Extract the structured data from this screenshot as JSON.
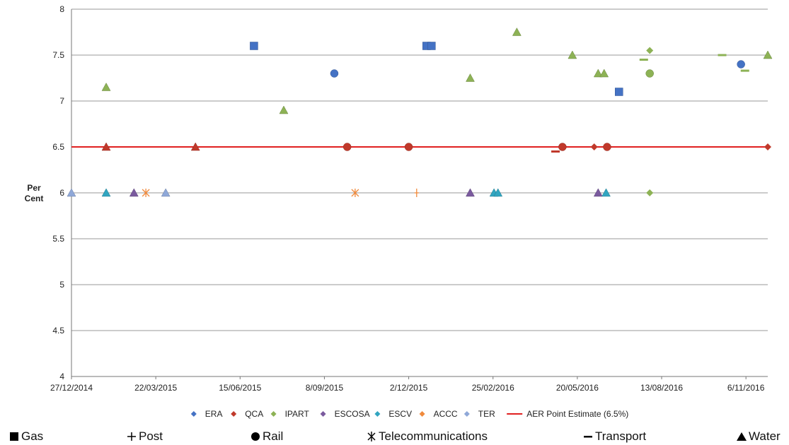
{
  "chart_data": {
    "type": "scatter",
    "ylabel": "Per\nCent",
    "ylim": [
      4,
      8
    ],
    "yticks": [
      "4",
      "4.5",
      "5",
      "5.5",
      "6",
      "6.5",
      "7",
      "7.5",
      "8"
    ],
    "xlim": [
      "2014-12-27",
      "2016-11-28"
    ],
    "xticks": [
      "27/12/2014",
      "22/03/2015",
      "15/06/2015",
      "8/09/2015",
      "2/12/2015",
      "25/02/2016",
      "20/05/2016",
      "13/08/2016",
      "6/11/2016"
    ],
    "grid": "horizontal",
    "legend_position": "bottom",
    "regulators": [
      {
        "name": "ERA",
        "color": "#4472C4"
      },
      {
        "name": "QCA",
        "color": "#C0392B"
      },
      {
        "name": "IPART",
        "color": "#8DB255"
      },
      {
        "name": "ESCOSA",
        "color": "#7A5A9E"
      },
      {
        "name": "ESCV",
        "color": "#31A5C0"
      },
      {
        "name": "ACCC",
        "color": "#F08A3C"
      },
      {
        "name": "TER",
        "color": "#8FA8D8"
      }
    ],
    "reference_line": {
      "name": "AER Point Estimate (6.5%)",
      "value": 6.5,
      "color": "#E02020"
    },
    "sectors": [
      "Gas",
      "Post",
      "Rail",
      "Telecommunications",
      "Transport",
      "Water"
    ],
    "points": [
      {
        "x": "2014-12-27",
        "y": 6.0,
        "regulator": "TER",
        "sector": "Water"
      },
      {
        "x": "2015-01-31",
        "y": 6.0,
        "regulator": "ESCV",
        "sector": "Water"
      },
      {
        "x": "2015-01-31",
        "y": 6.5,
        "regulator": "QCA",
        "sector": "Water"
      },
      {
        "x": "2015-01-31",
        "y": 7.15,
        "regulator": "IPART",
        "sector": "Water"
      },
      {
        "x": "2015-02-28",
        "y": 6.0,
        "regulator": "ESCOSA",
        "sector": "Water"
      },
      {
        "x": "2015-03-12",
        "y": 6.0,
        "regulator": "ACCC",
        "sector": "Telecommunications"
      },
      {
        "x": "2015-04-01",
        "y": 6.0,
        "regulator": "TER",
        "sector": "Water"
      },
      {
        "x": "2015-05-01",
        "y": 6.5,
        "regulator": "QCA",
        "sector": "Water"
      },
      {
        "x": "2015-06-29",
        "y": 7.6,
        "regulator": "ERA",
        "sector": "Gas"
      },
      {
        "x": "2015-07-29",
        "y": 6.9,
        "regulator": "IPART",
        "sector": "Water"
      },
      {
        "x": "2015-09-18",
        "y": 7.3,
        "regulator": "ERA",
        "sector": "Rail"
      },
      {
        "x": "2015-10-01",
        "y": 6.5,
        "regulator": "QCA",
        "sector": "Rail"
      },
      {
        "x": "2015-10-09",
        "y": 6.0,
        "regulator": "ACCC",
        "sector": "Telecommunications"
      },
      {
        "x": "2015-12-02",
        "y": 6.5,
        "regulator": "QCA",
        "sector": "Rail"
      },
      {
        "x": "2015-12-10",
        "y": 6.0,
        "regulator": "ACCC",
        "sector": "Post"
      },
      {
        "x": "2015-12-20",
        "y": 7.6,
        "regulator": "ERA",
        "sector": "Gas"
      },
      {
        "x": "2015-12-25",
        "y": 7.6,
        "regulator": "ERA",
        "sector": "Gas"
      },
      {
        "x": "2016-02-02",
        "y": 7.25,
        "regulator": "IPART",
        "sector": "Water"
      },
      {
        "x": "2016-02-02",
        "y": 6.0,
        "regulator": "ESCOSA",
        "sector": "Water"
      },
      {
        "x": "2016-02-26",
        "y": 6.0,
        "regulator": "ESCV",
        "sector": "Water"
      },
      {
        "x": "2016-03-01",
        "y": 6.0,
        "regulator": "ESCV",
        "sector": "Water"
      },
      {
        "x": "2016-03-20",
        "y": 7.75,
        "regulator": "IPART",
        "sector": "Water"
      },
      {
        "x": "2016-04-28",
        "y": 6.45,
        "regulator": "QCA",
        "sector": "Transport"
      },
      {
        "x": "2016-05-05",
        "y": 6.5,
        "regulator": "QCA",
        "sector": "Rail"
      },
      {
        "x": "2016-05-15",
        "y": 7.5,
        "regulator": "IPART",
        "sector": "Water"
      },
      {
        "x": "2016-06-06",
        "y": 6.5,
        "regulator": "QCA",
        "sector": ""
      },
      {
        "x": "2016-06-10",
        "y": 7.3,
        "regulator": "IPART",
        "sector": "Water"
      },
      {
        "x": "2016-06-10",
        "y": 6.0,
        "regulator": "ESCOSA",
        "sector": "Water"
      },
      {
        "x": "2016-06-16",
        "y": 7.3,
        "regulator": "IPART",
        "sector": "Water"
      },
      {
        "x": "2016-06-18",
        "y": 6.0,
        "regulator": "ESCV",
        "sector": "Water"
      },
      {
        "x": "2016-06-19",
        "y": 6.5,
        "regulator": "QCA",
        "sector": "Rail"
      },
      {
        "x": "2016-07-01",
        "y": 7.1,
        "regulator": "ERA",
        "sector": "Gas"
      },
      {
        "x": "2016-07-26",
        "y": 7.45,
        "regulator": "IPART",
        "sector": "Transport"
      },
      {
        "x": "2016-08-01",
        "y": 7.3,
        "regulator": "IPART",
        "sector": "Rail"
      },
      {
        "x": "2016-08-01",
        "y": 7.55,
        "regulator": "IPART",
        "sector": ""
      },
      {
        "x": "2016-08-01",
        "y": 6.0,
        "regulator": "IPART",
        "sector": ""
      },
      {
        "x": "2016-10-13",
        "y": 7.5,
        "regulator": "IPART",
        "sector": "Transport"
      },
      {
        "x": "2016-11-01",
        "y": 7.4,
        "regulator": "ERA",
        "sector": "Rail"
      },
      {
        "x": "2016-11-05",
        "y": 7.33,
        "regulator": "IPART",
        "sector": "Transport"
      },
      {
        "x": "2016-11-28",
        "y": 6.5,
        "regulator": "QCA",
        "sector": ""
      },
      {
        "x": "2016-11-28",
        "y": 7.5,
        "regulator": "IPART",
        "sector": "Water"
      }
    ]
  }
}
